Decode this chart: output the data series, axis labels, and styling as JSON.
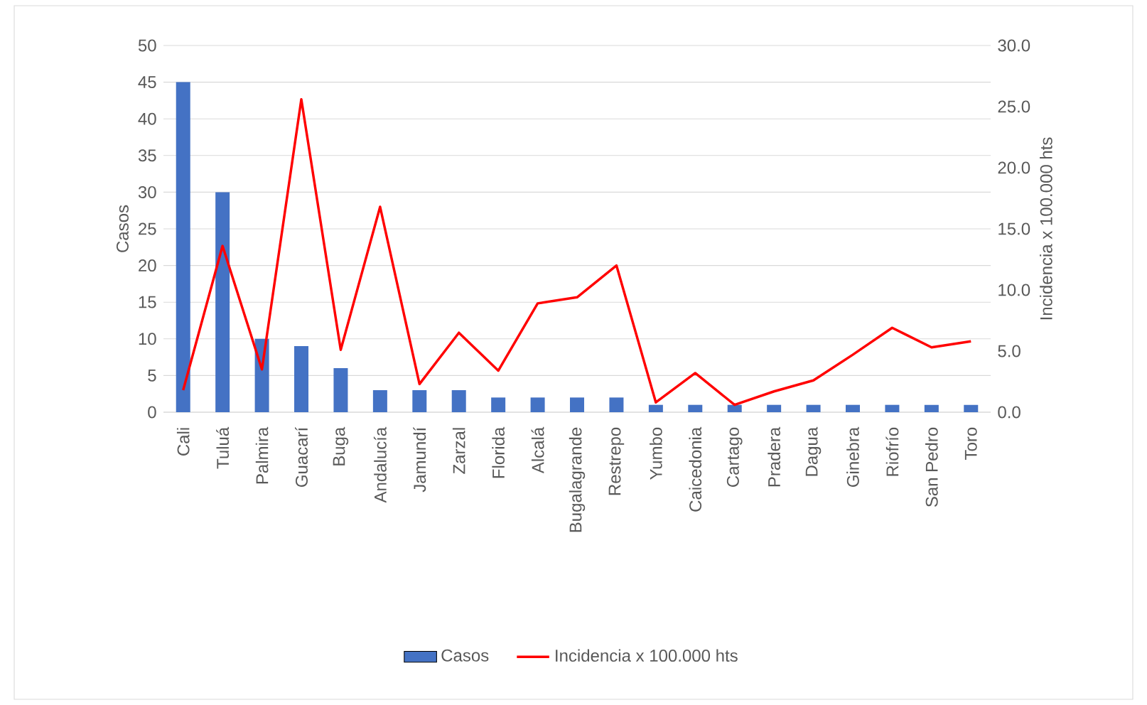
{
  "chart_data": {
    "type": "bar",
    "ylabel": "Casos",
    "y2label": "Incidencia x 100.000 hts",
    "categories": [
      "Cali",
      "Tuluá",
      "Palmira",
      "Guacarí",
      "Buga",
      "Andalucía",
      "Jamundí",
      "Zarzal",
      "Florida",
      "Alcalá",
      "Bugalagrande",
      "Restrepo",
      "Yumbo",
      "Caicedonia",
      "Cartago",
      "Pradera",
      "Dagua",
      "Ginebra",
      "Riofrío",
      "San Pedro",
      "Toro"
    ],
    "series": [
      {
        "name": "Casos",
        "color": "#4472c4",
        "values": [
          45,
          30,
          10,
          9,
          6,
          3,
          3,
          3,
          2,
          2,
          2,
          2,
          1,
          1,
          1,
          1,
          1,
          1,
          1,
          1,
          1
        ]
      },
      {
        "name": "Incidencia x 100.000 hts",
        "type": "line",
        "axis": "y2",
        "color": "#ff0000",
        "values": [
          1.8,
          13.6,
          3.5,
          25.6,
          5.1,
          16.8,
          2.3,
          6.5,
          3.4,
          8.9,
          9.4,
          12.0,
          0.8,
          3.2,
          0.6,
          1.7,
          2.6,
          4.7,
          6.9,
          5.3,
          5.8
        ]
      }
    ],
    "ylim": [
      0,
      50
    ],
    "yticks": [
      0,
      5,
      10,
      15,
      20,
      25,
      30,
      35,
      40,
      45,
      50
    ],
    "y2lim": [
      0,
      30
    ],
    "y2ticks": [
      {
        "value": 0,
        "label": "0.0"
      },
      {
        "value": 5,
        "label": "5.0"
      },
      {
        "value": 10,
        "label": "10.0"
      },
      {
        "value": 15,
        "label": "15.0"
      },
      {
        "value": 20,
        "label": "20.0"
      },
      {
        "value": 25,
        "label": "25.0"
      },
      {
        "value": 30,
        "label": "30.0"
      }
    ],
    "grid": "y",
    "legend": "bottom",
    "marker": "none"
  }
}
